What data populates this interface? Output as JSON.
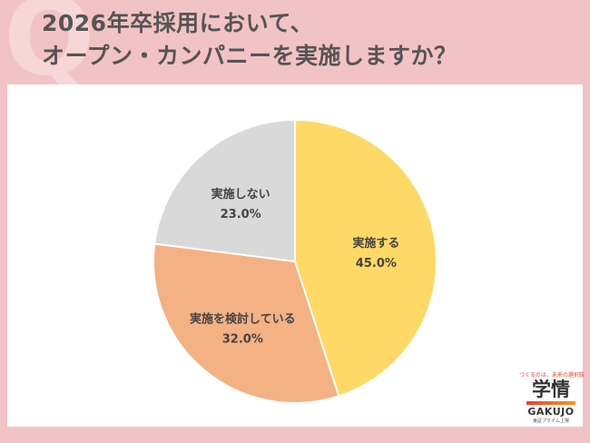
{
  "title_lines": [
    "2026年卒採用において、",
    "オープン・カンパニーを実施しますか？"
  ],
  "decor_letter": "Q",
  "chart_data": {
    "type": "pie",
    "title": "2026年卒採用において、オープン・カンパニーを実施しますか？",
    "start": "top",
    "direction": "clockwise",
    "slices": [
      {
        "label": "実施する",
        "value": 45.0,
        "display": "45.0%",
        "color": "#ffd966"
      },
      {
        "label": "実施を検討している",
        "value": 32.0,
        "display": "32.0%",
        "color": "#f4b183"
      },
      {
        "label": "実施しない",
        "value": 23.0,
        "display": "23.0%",
        "color": "#d9d9d9"
      }
    ]
  },
  "logo": {
    "tagline": "つくるのは、未来の選択肢",
    "name": "学情",
    "en": "GAKUJO",
    "sub": "東証プライム上場"
  }
}
